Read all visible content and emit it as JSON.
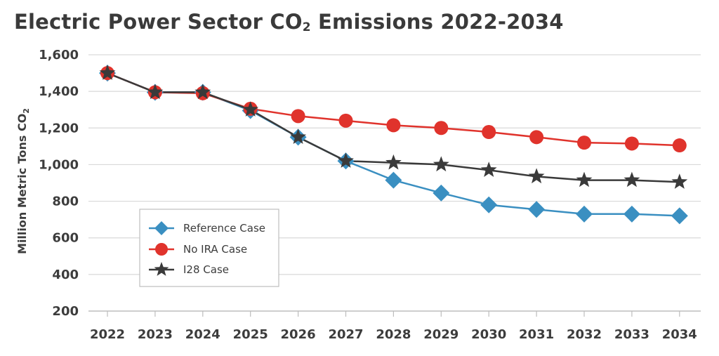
{
  "title_main": "Electric Power Sector CO",
  "title_sub": "2",
  "title_rest": " Emissions 2022-2034",
  "chart_data": {
    "type": "line",
    "title": "Electric Power Sector CO2 Emissions 2022-2034",
    "ylabel": "Million Metric Tons CO2",
    "ylabel_main": "Million Metric Tons CO",
    "ylabel_sub": "2",
    "xlabel": "",
    "ylim": [
      200,
      1600
    ],
    "yticks": [
      "200",
      "400",
      "600",
      "800",
      "1,000",
      "1,200",
      "1,400",
      "1,600"
    ],
    "ytick_values": [
      200,
      400,
      600,
      800,
      1000,
      1200,
      1400,
      1600
    ],
    "categories": [
      "2022",
      "2023",
      "2024",
      "2025",
      "2026",
      "2027",
      "2028",
      "2029",
      "2030",
      "2031",
      "2032",
      "2033",
      "2034"
    ],
    "grid": true,
    "legend_position": "bottom-left",
    "series": [
      {
        "name": "Reference Case",
        "marker": "diamond",
        "color": "#3a8fc1",
        "values": [
          1500,
          1395,
          1395,
          1295,
          1150,
          1020,
          915,
          845,
          780,
          755,
          730,
          730,
          720
        ]
      },
      {
        "name": "No IRA Case",
        "marker": "circle",
        "color": "#e0332c",
        "values": [
          1500,
          1395,
          1390,
          1305,
          1265,
          1240,
          1215,
          1200,
          1178,
          1150,
          1120,
          1115,
          1105
        ]
      },
      {
        "name": "I28 Case",
        "marker": "star",
        "color": "#3a3a3a",
        "values": [
          1500,
          1395,
          1395,
          1300,
          1150,
          1020,
          1010,
          1000,
          970,
          935,
          915,
          915,
          905
        ]
      }
    ]
  }
}
